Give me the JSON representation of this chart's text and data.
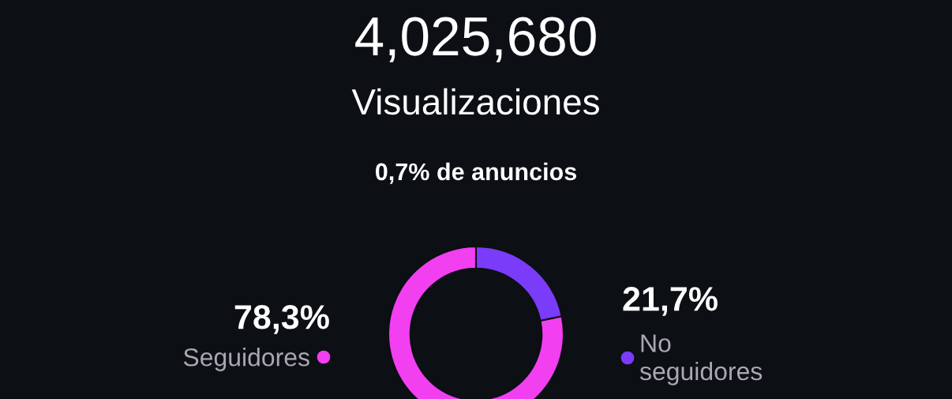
{
  "chart_data": {
    "type": "donut",
    "title": "4,025,680",
    "subtitle": "Visualizaciones",
    "annotations": [
      "0,7% de anuncios"
    ],
    "categories": [
      "Seguidores",
      "No\nseguidores"
    ],
    "values": [
      78.3,
      21.7
    ],
    "value_labels": [
      "78,3%",
      "21,7%"
    ],
    "colors": [
      "#f23ff0",
      "#7a3cf9"
    ]
  }
}
